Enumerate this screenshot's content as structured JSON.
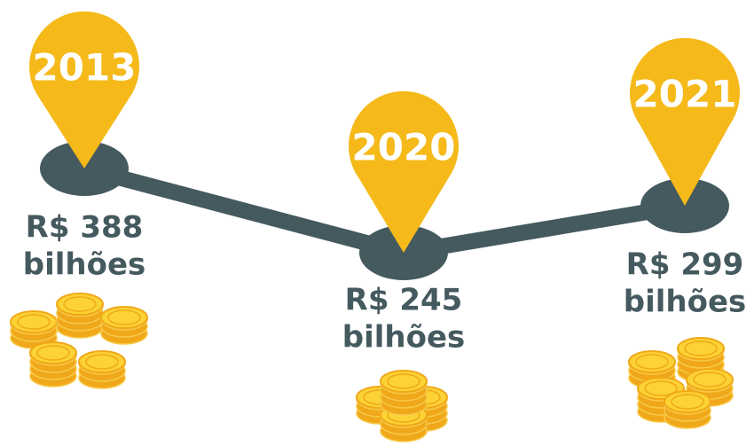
{
  "nodes": [
    {
      "year": "2013",
      "value": "R$ 388",
      "unit": "bilhões"
    },
    {
      "year": "2020",
      "value": "R$ 245",
      "unit": "bilhões"
    },
    {
      "year": "2021",
      "value": "R$ 299",
      "unit": "bilhões"
    }
  ]
}
